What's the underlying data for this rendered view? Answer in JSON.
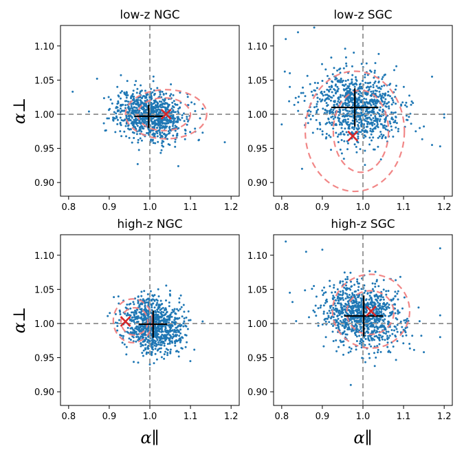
{
  "figure": {
    "xlabel": "α∥",
    "ylabel": "α⊥"
  },
  "chart_data": [
    {
      "type": "scatter",
      "title": "low-z NGC",
      "xlabel": "",
      "ylabel": "α⊥",
      "xlim": [
        0.78,
        1.22
      ],
      "ylim": [
        0.88,
        1.13
      ],
      "xticks": [
        "0.8",
        "0.9",
        "1.0",
        "1.1",
        "1.2"
      ],
      "yticks": [
        "0.90",
        "0.95",
        "1.00",
        "1.05",
        "1.10"
      ],
      "reference": {
        "x": 1.0,
        "y": 1.0
      },
      "cloud": {
        "center": [
          1.0,
          1.0
        ],
        "sigma": [
          0.04,
          0.018
        ],
        "n": 900,
        "seed": 11
      },
      "outliers": [
        [
          0.81,
          1.033
        ],
        [
          0.87,
          1.052
        ],
        [
          0.85,
          1.004
        ],
        [
          0.89,
          0.976
        ],
        [
          0.93,
          0.968
        ],
        [
          0.97,
          0.927
        ],
        [
          1.07,
          0.924
        ],
        [
          1.11,
          1.015
        ],
        [
          1.13,
          0.973
        ],
        [
          1.12,
          0.962
        ],
        [
          1.13,
          1.008
        ],
        [
          0.92,
          1.04
        ]
      ],
      "contours": [
        {
          "center": [
            1.04,
            1.0
          ],
          "rx": 0.1,
          "ry": 0.036
        },
        {
          "center": [
            1.035,
            1.0
          ],
          "rx": 0.065,
          "ry": 0.024
        }
      ],
      "mean": {
        "x": 0.997,
        "y": 0.997,
        "xerr": 0.035,
        "yerr": 0.017
      },
      "truth": {
        "x": 1.04,
        "y": 1.0
      }
    },
    {
      "type": "scatter",
      "title": "low-z SGC",
      "xlabel": "",
      "ylabel": "",
      "xlim": [
        0.78,
        1.22
      ],
      "ylim": [
        0.88,
        1.13
      ],
      "xticks": [
        "0.8",
        "0.9",
        "1.0",
        "1.1",
        "1.2"
      ],
      "yticks": [
        "0.90",
        "0.95",
        "1.00",
        "1.05",
        "1.10"
      ],
      "reference": {
        "x": 1.0,
        "y": 1.0
      },
      "cloud": {
        "center": [
          0.98,
          1.01
        ],
        "sigma": [
          0.055,
          0.026
        ],
        "n": 900,
        "seed": 23
      },
      "outliers": [
        [
          0.81,
          1.11
        ],
        [
          0.8,
          0.985
        ],
        [
          0.84,
          1.12
        ],
        [
          0.88,
          1.127
        ],
        [
          0.82,
          1.06
        ],
        [
          1.17,
          1.055
        ],
        [
          1.15,
          0.982
        ],
        [
          1.17,
          0.955
        ],
        [
          1.13,
          0.975
        ],
        [
          1.19,
          0.953
        ],
        [
          1.2,
          1.0
        ],
        [
          1.2,
          0.995
        ],
        [
          0.82,
          1.04
        ],
        [
          0.85,
          0.92
        ]
      ],
      "contours": [
        {
          "center": [
            0.98,
            0.975
          ],
          "rx": 0.122,
          "ry": 0.088
        },
        {
          "center": [
            0.995,
            0.975
          ],
          "rx": 0.068,
          "ry": 0.06
        }
      ],
      "mean": {
        "x": 0.98,
        "y": 1.01,
        "xerr": 0.058,
        "yerr": 0.028
      },
      "truth": {
        "x": 0.975,
        "y": 0.968
      }
    },
    {
      "type": "scatter",
      "title": "high-z NGC",
      "xlabel": "α∥",
      "ylabel": "α⊥",
      "xlim": [
        0.78,
        1.22
      ],
      "ylim": [
        0.88,
        1.13
      ],
      "xticks": [
        "0.8",
        "0.9",
        "1.0",
        "1.1",
        "1.2"
      ],
      "yticks": [
        "0.90",
        "0.95",
        "1.00",
        "1.05",
        "1.10"
      ],
      "reference": {
        "x": 1.0,
        "y": 1.0
      },
      "cloud": {
        "center": [
          1.01,
          0.998
        ],
        "sigma": [
          0.035,
          0.02
        ],
        "n": 900,
        "seed": 37
      },
      "outliers": [
        [
          1.13,
          1.003
        ],
        [
          1.1,
          1.005
        ],
        [
          0.95,
          0.985
        ],
        [
          1.0,
          0.94
        ]
      ],
      "contours": [
        {
          "center": [
            0.958,
            1.004
          ],
          "rx": 0.048,
          "ry": 0.032
        },
        {
          "center": [
            0.962,
            1.003
          ],
          "rx": 0.033,
          "ry": 0.02
        }
      ],
      "mean": {
        "x": 1.008,
        "y": 0.999,
        "xerr": 0.035,
        "yerr": 0.02
      },
      "truth": {
        "x": 0.94,
        "y": 1.003
      }
    },
    {
      "type": "scatter",
      "title": "high-z SGC",
      "xlabel": "α∥",
      "ylabel": "",
      "xlim": [
        0.78,
        1.22
      ],
      "ylim": [
        0.88,
        1.13
      ],
      "xticks": [
        "0.8",
        "0.9",
        "1.0",
        "1.1",
        "1.2"
      ],
      "yticks": [
        "0.90",
        "0.95",
        "1.00",
        "1.05",
        "1.10"
      ],
      "reference": {
        "x": 1.0,
        "y": 1.0
      },
      "cloud": {
        "center": [
          1.0,
          1.012
        ],
        "sigma": [
          0.05,
          0.024
        ],
        "n": 1000,
        "seed": 53
      },
      "outliers": [
        [
          0.81,
          1.12
        ],
        [
          0.86,
          1.105
        ],
        [
          0.9,
          1.108
        ],
        [
          1.19,
          1.11
        ],
        [
          0.97,
          0.91
        ],
        [
          1.19,
          0.98
        ],
        [
          1.19,
          1.012
        ],
        [
          0.82,
          1.045
        ],
        [
          1.15,
          0.958
        ]
      ],
      "contours": [
        {
          "center": [
            1.02,
            1.018
          ],
          "rx": 0.095,
          "ry": 0.054
        },
        {
          "center": [
            1.018,
            1.016
          ],
          "rx": 0.058,
          "ry": 0.032
        }
      ],
      "mean": {
        "x": 1.002,
        "y": 1.011,
        "xerr": 0.048,
        "yerr": 0.03
      },
      "truth": {
        "x": 1.02,
        "y": 1.018
      }
    }
  ]
}
